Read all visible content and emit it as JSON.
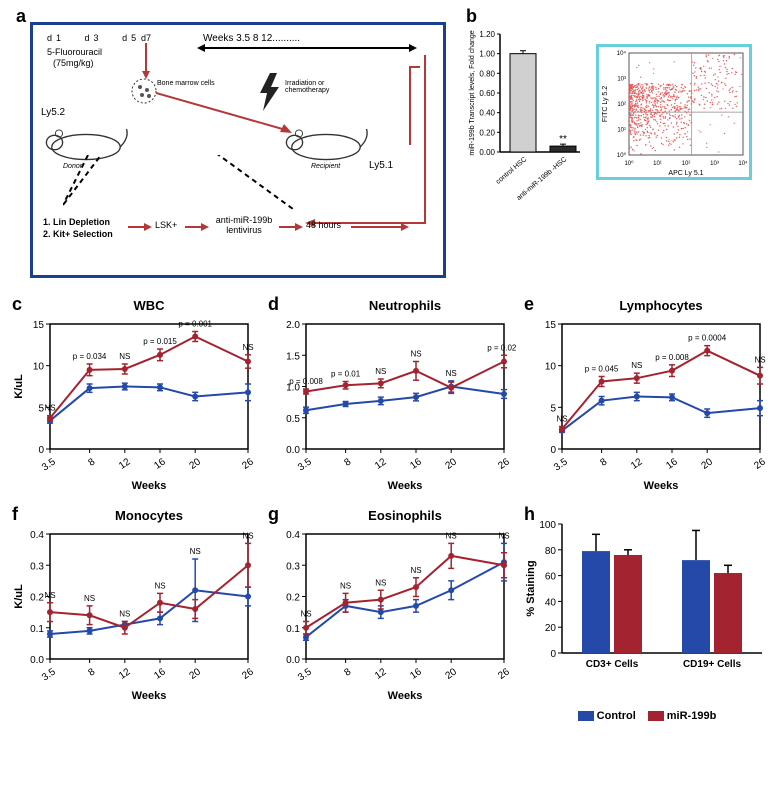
{
  "panel_a": {
    "label": "a",
    "drug_days": [
      "d1",
      "d3",
      "d5",
      "d7"
    ],
    "drug_name": "5-Fluorouracil",
    "drug_dose": "(75mg/kg)",
    "timeline": "Weeks    3.5     8     12..........",
    "donor_strain": "Ly5.2",
    "recipient_strain": "Ly5.1",
    "donor_label": "Donor",
    "recipient_label": "Recipient",
    "cells_label": "Bone marrow cells",
    "treatment": "Irradiation or chemotherapy",
    "step1": "1.  Lin Depletion",
    "step2": "2.  Kit+ Selection",
    "step3": "LSK+",
    "step4": "anti-miR-199b lentivirus",
    "step5": "48 hours"
  },
  "panel_b": {
    "label": "b",
    "bar_chart": {
      "ylabel": "miR-199b Transcript levels, Fold change",
      "ymax": 1.2,
      "ytick": 0.2,
      "categories": [
        "control HSC",
        "anti-miR-199b -HSC"
      ],
      "values": [
        1.0,
        0.06
      ],
      "errors": [
        0.03,
        0.02
      ],
      "colors": [
        "#d0d0d0",
        "#2a2a2a"
      ],
      "sig": "**"
    },
    "scatter": {
      "xlabel": "APC Ly 5.1",
      "ylabel": "FITC Ly 5.2",
      "ticks": [
        "10⁰",
        "10¹",
        "10²",
        "10³",
        "10⁴"
      ],
      "dot_color": "#e85a5a"
    }
  },
  "line_charts": [
    {
      "id": "c",
      "title": "WBC",
      "ylabel": "K/uL",
      "xlabel": "Weeks",
      "ymax": 15,
      "ymin": 0,
      "ytick": 5,
      "x": [
        3.5,
        8,
        12,
        16,
        20,
        26
      ],
      "control": {
        "y": [
          3.4,
          7.3,
          7.5,
          7.4,
          6.3,
          6.8
        ],
        "err": [
          0.3,
          0.5,
          0.4,
          0.4,
          0.5,
          1.0
        ]
      },
      "mir": {
        "y": [
          3.7,
          9.5,
          9.6,
          11.3,
          13.5,
          10.5
        ],
        "err": [
          0.3,
          0.7,
          0.6,
          0.7,
          0.6,
          0.8
        ]
      },
      "annotations": [
        "NS",
        "p = 0.034",
        "NS",
        "p = 0.015",
        "p = 0.001",
        "NS"
      ]
    },
    {
      "id": "d",
      "title": "Neutrophils",
      "ylabel": "",
      "xlabel": "Weeks",
      "ymax": 2.0,
      "ymin": 0,
      "ytick": 0.5,
      "x": [
        3.5,
        8,
        12,
        16,
        20,
        26
      ],
      "control": {
        "y": [
          0.62,
          0.72,
          0.77,
          0.83,
          1.0,
          0.88
        ],
        "err": [
          0.05,
          0.04,
          0.06,
          0.06,
          0.09,
          0.07
        ]
      },
      "mir": {
        "y": [
          0.92,
          1.02,
          1.05,
          1.25,
          0.98,
          1.4
        ],
        "err": [
          0.04,
          0.06,
          0.07,
          0.15,
          0.09,
          0.1
        ]
      },
      "annotations": [
        "p = 0.008",
        "p = 0.01",
        "NS",
        "NS",
        "NS",
        "p = 0.027"
      ]
    },
    {
      "id": "e",
      "title": "Lymphocytes",
      "ylabel": "",
      "xlabel": "Weeks",
      "ymax": 15,
      "ymin": 0,
      "ytick": 5,
      "x": [
        3.5,
        8,
        12,
        16,
        20,
        26
      ],
      "control": {
        "y": [
          2.2,
          5.8,
          6.3,
          6.2,
          4.3,
          4.9
        ],
        "err": [
          0.2,
          0.5,
          0.5,
          0.4,
          0.5,
          0.9
        ]
      },
      "mir": {
        "y": [
          2.4,
          8.1,
          8.5,
          9.4,
          11.8,
          8.8
        ],
        "err": [
          0.3,
          0.6,
          0.6,
          0.7,
          0.6,
          1.0
        ]
      },
      "annotations": [
        "NS",
        "p = 0.045",
        "NS",
        "p = 0.008",
        "p = 0.0004",
        "NS"
      ]
    },
    {
      "id": "f",
      "title": "Monocytes",
      "ylabel": "K/uL",
      "xlabel": "Weeks",
      "ymax": 0.4,
      "ymin": 0,
      "ytick": 0.1,
      "x": [
        3.5,
        8,
        12,
        16,
        20,
        26
      ],
      "control": {
        "y": [
          0.08,
          0.09,
          0.11,
          0.13,
          0.22,
          0.2
        ],
        "err": [
          0.01,
          0.01,
          0.01,
          0.02,
          0.1,
          0.03
        ]
      },
      "mir": {
        "y": [
          0.15,
          0.14,
          0.1,
          0.18,
          0.16,
          0.3
        ],
        "err": [
          0.03,
          0.03,
          0.02,
          0.03,
          0.03,
          0.07
        ]
      },
      "annotations": [
        "NS",
        "NS",
        "NS",
        "NS",
        "NS",
        "NS"
      ]
    },
    {
      "id": "g",
      "title": "Eosinophils",
      "ylabel": "",
      "xlabel": "Weeks",
      "ymax": 0.4,
      "ymin": 0,
      "ytick": 0.1,
      "x": [
        3.5,
        8,
        12,
        16,
        20,
        26
      ],
      "control": {
        "y": [
          0.07,
          0.17,
          0.15,
          0.17,
          0.22,
          0.31
        ],
        "err": [
          0.01,
          0.02,
          0.02,
          0.02,
          0.03,
          0.06
        ]
      },
      "mir": {
        "y": [
          0.1,
          0.18,
          0.19,
          0.23,
          0.33,
          0.3
        ],
        "err": [
          0.02,
          0.03,
          0.03,
          0.03,
          0.04,
          0.04
        ]
      },
      "annotations": [
        "NS",
        "NS",
        "NS",
        "NS",
        "NS",
        "NS"
      ]
    }
  ],
  "panel_h": {
    "label": "h",
    "ylabel": "% Staining",
    "ymax": 100,
    "ytick": 20,
    "groups": [
      "CD3+ Cells",
      "CD19+ Cells"
    ],
    "series": [
      {
        "name": "Control",
        "color": "#2449a8",
        "values": [
          79,
          72
        ],
        "errors": [
          13,
          23
        ]
      },
      {
        "name": "miR-199b",
        "color": "#a32430",
        "values": [
          76,
          62
        ],
        "errors": [
          4,
          6
        ]
      }
    ]
  },
  "colors": {
    "control_line": "#2449a8",
    "mir_line": "#a32430",
    "axis": "#000000",
    "arrow_red": "#b33939"
  }
}
